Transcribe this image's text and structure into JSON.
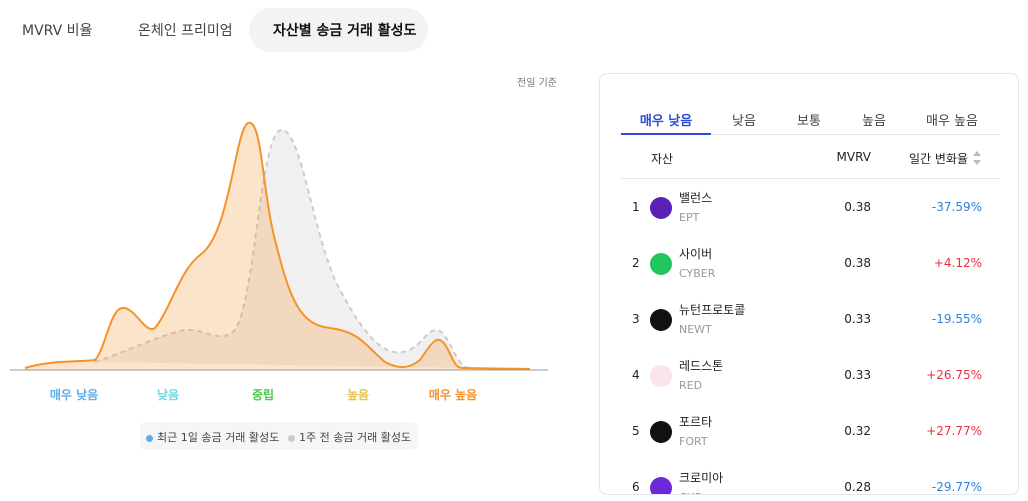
{
  "tabs": [
    "MVRV 비율",
    "온체인 프리미엄",
    "자산별 송금 거래 활성도"
  ],
  "chart": {
    "note": "전일 기준",
    "zones": [
      "매우 낮음",
      "낮음",
      "중립",
      "높음",
      "매우 높음"
    ],
    "legend": [
      "최근 1일 송금 거래 활성도",
      "1주 전 송금 거래 활성도"
    ]
  },
  "panel": {
    "tabs": [
      "매우 낮음",
      "낮음",
      "보통",
      "높음",
      "매우 높음"
    ],
    "columns": [
      "자산",
      "MVRV",
      "일간 변화율"
    ],
    "rows": [
      {
        "rank": "1",
        "name": "밸런스",
        "symbol": "EPT",
        "mvrv": "0.38",
        "change": "-37.59%"
      },
      {
        "rank": "2",
        "name": "사이버",
        "symbol": "CYBER",
        "mvrv": "0.38",
        "change": "+4.12%"
      },
      {
        "rank": "3",
        "name": "뉴턴프로토콜",
        "symbol": "NEWT",
        "mvrv": "0.33",
        "change": "-19.55%"
      },
      {
        "rank": "4",
        "name": "레드스톤",
        "symbol": "RED",
        "mvrv": "0.33",
        "change": "+26.75%"
      },
      {
        "rank": "5",
        "name": "포르타",
        "symbol": "FORT",
        "mvrv": "0.32",
        "change": "+27.77%"
      },
      {
        "rank": "6",
        "name": "크로미아",
        "symbol": "CHR",
        "mvrv": "0.28",
        "change": "-29.77%"
      }
    ]
  }
}
